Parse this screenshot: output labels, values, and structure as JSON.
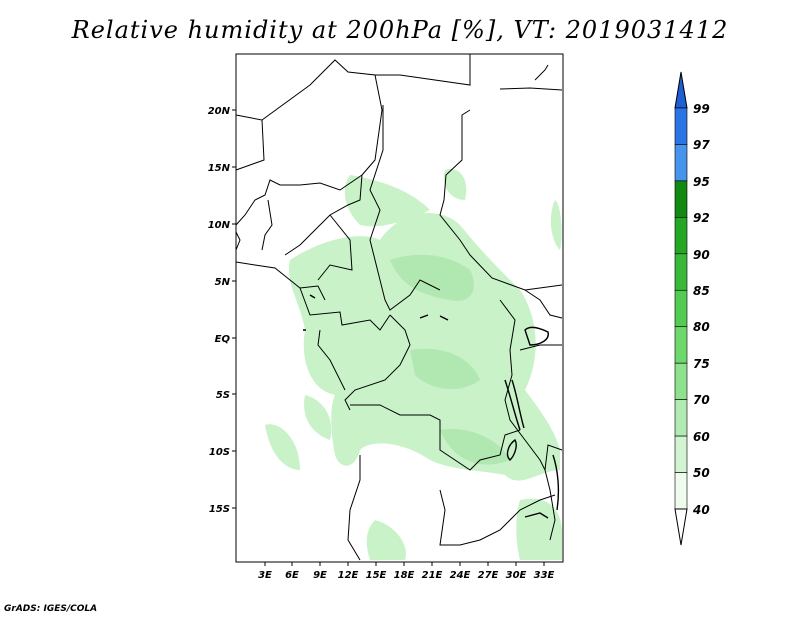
{
  "title": "Relative humidity at 200hPa [%], VT: 2019031412",
  "credit": "GrADS: IGES/COLA",
  "map": {
    "lat_labels": [
      "20N",
      "15N",
      "10N",
      "5N",
      "EQ",
      "5S",
      "10S",
      "15S"
    ],
    "lon_labels": [
      "3E",
      "6E",
      "9E",
      "12E",
      "15E",
      "18E",
      "21E",
      "24E",
      "27E",
      "30E",
      "33E"
    ]
  },
  "colorbar": {
    "labels": [
      "99",
      "97",
      "95",
      "92",
      "90",
      "85",
      "80",
      "75",
      "70",
      "60",
      "50",
      "40"
    ],
    "colors": [
      "#1e5fd4",
      "#2a74e6",
      "#4594ee",
      "#128a12",
      "#24a824",
      "#3ab83a",
      "#52cc52",
      "#6dd96d",
      "#8ee28e",
      "#b1ebb1",
      "#d2f4d2",
      "#eefcee"
    ]
  }
}
